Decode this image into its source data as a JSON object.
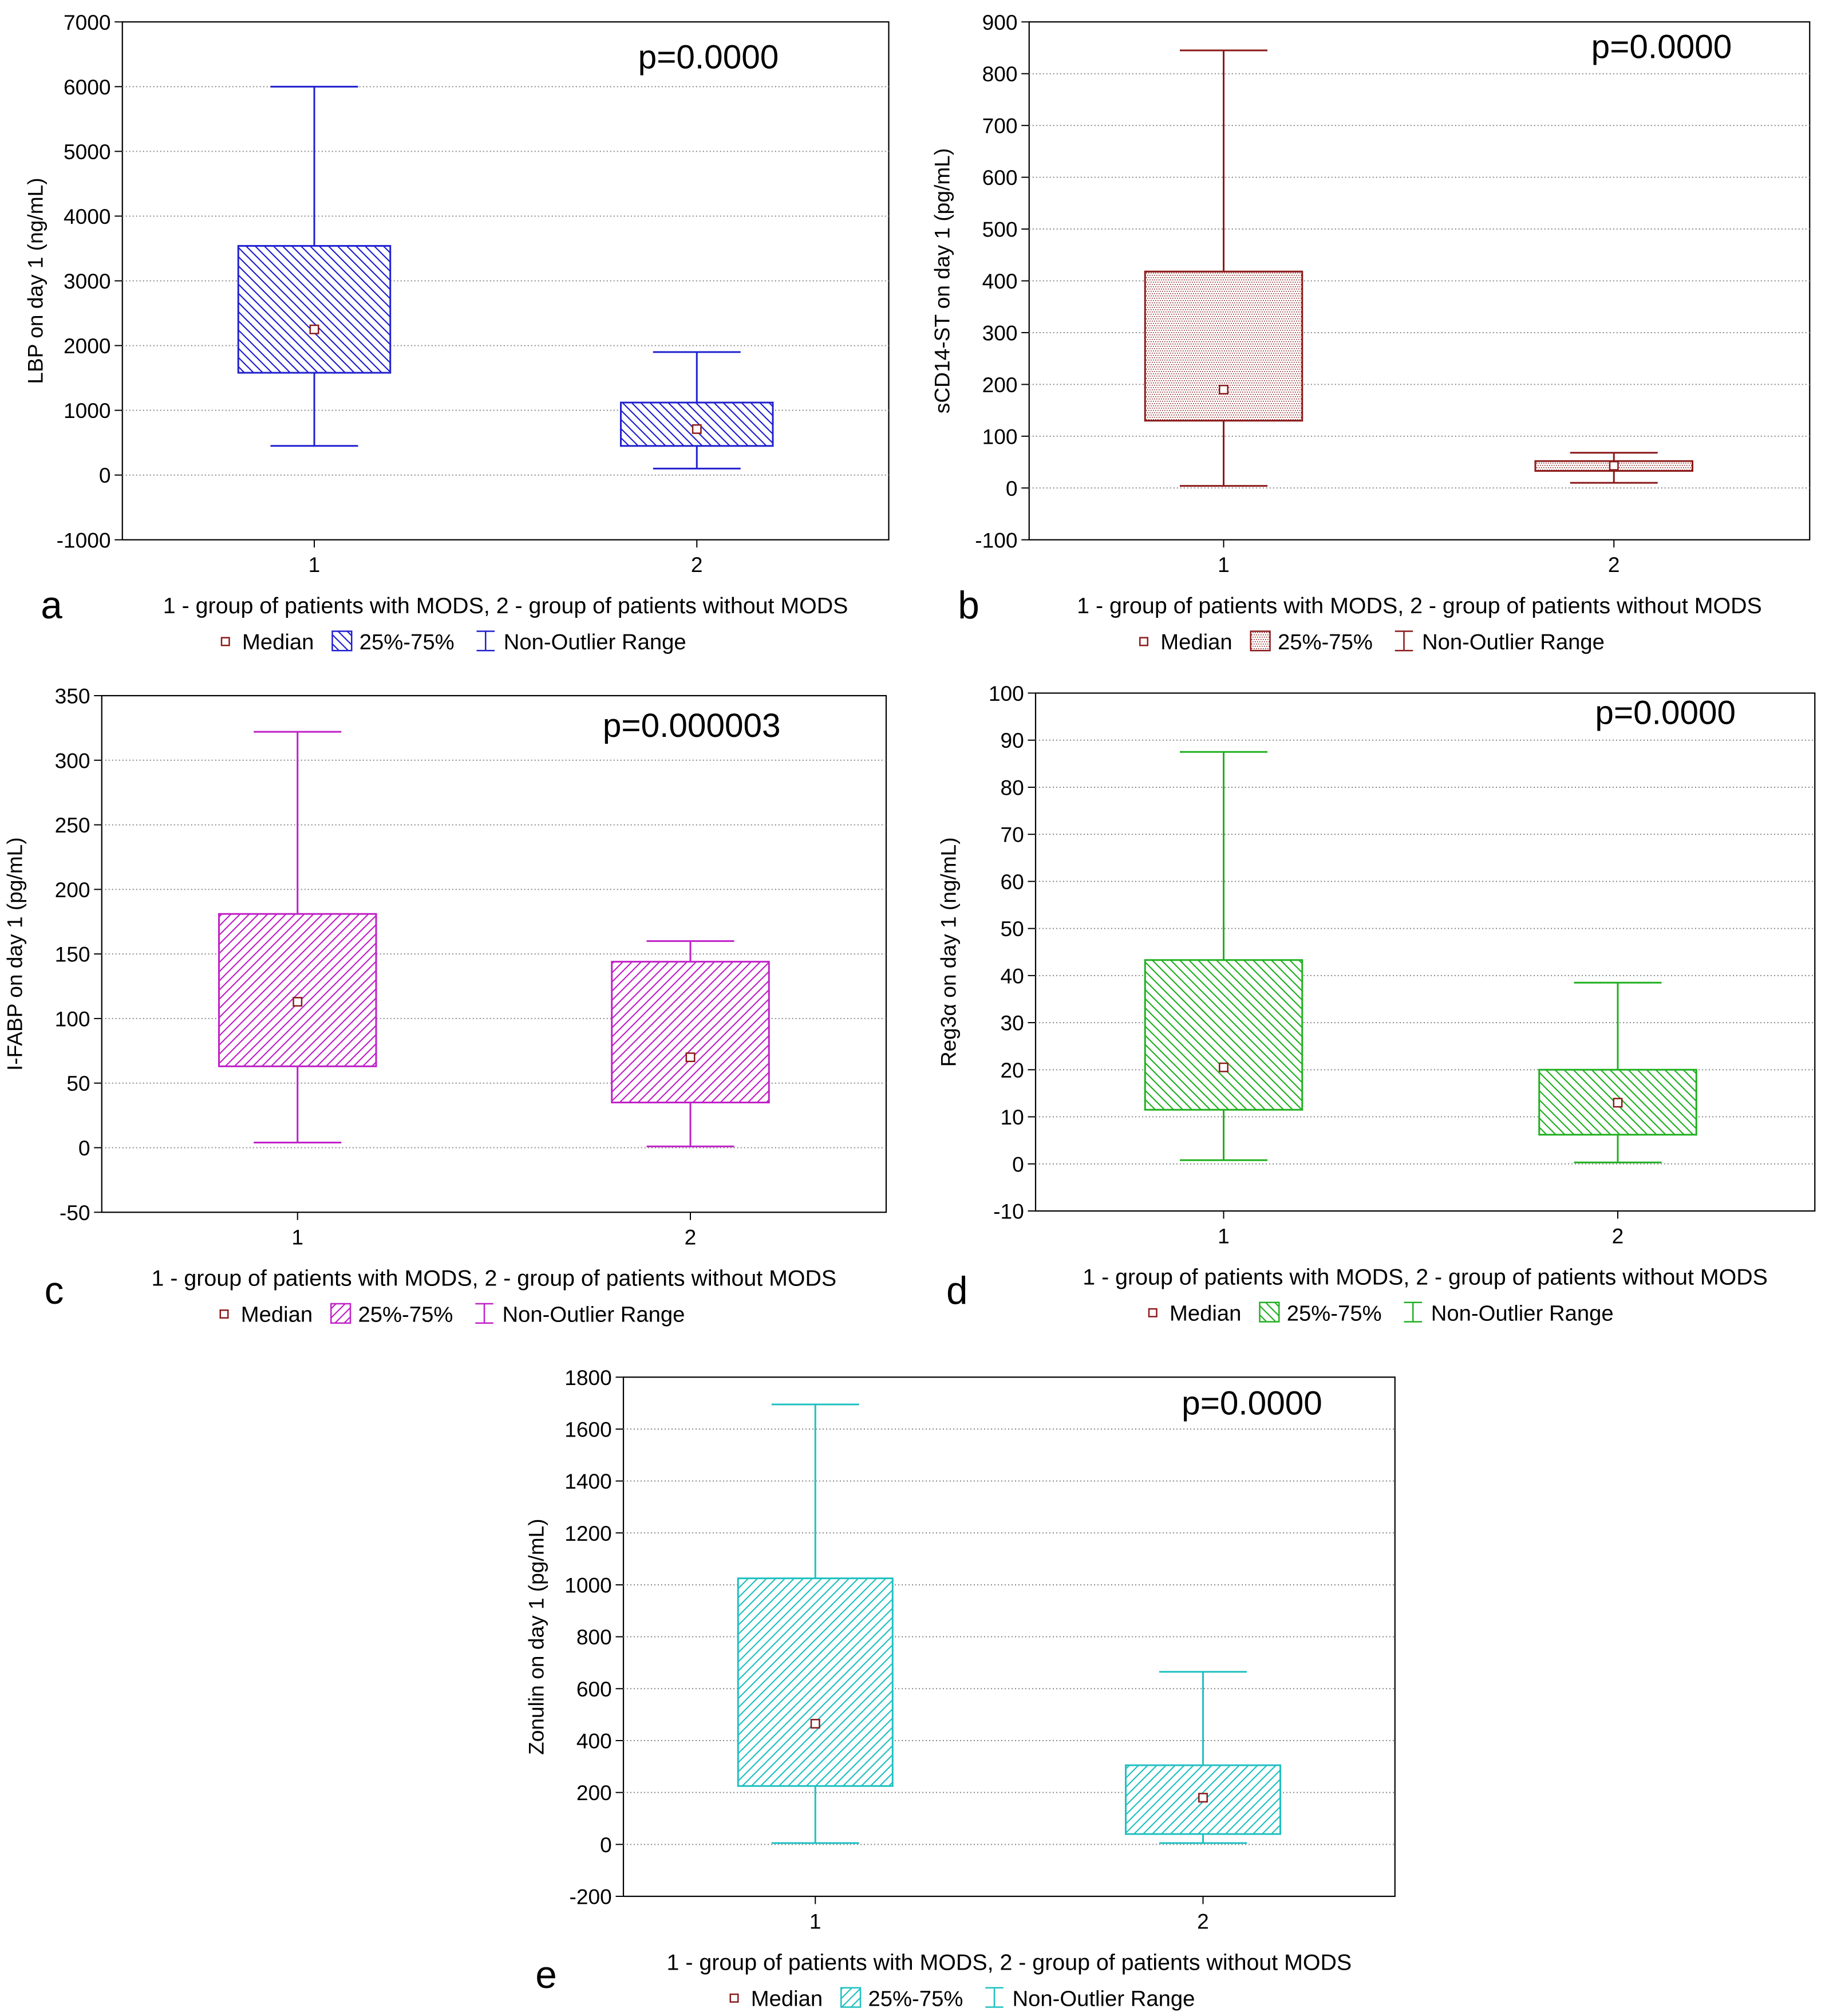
{
  "figure": {
    "legend_labels": {
      "median": "Median",
      "iqr": "25%-75%",
      "range": "Non-Outlier Range"
    }
  },
  "chart_data": [
    {
      "id": "a",
      "panel_label": "a",
      "type": "box",
      "title": "",
      "xlabel": "1 - group of patients with MODS, 2 - group of patients without MODS",
      "ylabel": "LBP on day 1 (ng/mL)",
      "annotation": "p=0.0000",
      "color": "#2020d0",
      "pattern": "diag-back",
      "categories": [
        "1",
        "2"
      ],
      "ylim": [
        -1000,
        7000
      ],
      "yticks": [
        -1000,
        0,
        1000,
        2000,
        3000,
        4000,
        5000,
        6000,
        7000
      ],
      "grid": true,
      "legend_position": "bottom",
      "series": [
        {
          "category": "1",
          "min": 450,
          "q1": 1580,
          "median": 2250,
          "q3": 3540,
          "max": 6000
        },
        {
          "category": "2",
          "min": 100,
          "q1": 450,
          "median": 710,
          "q3": 1120,
          "max": 1900
        }
      ]
    },
    {
      "id": "b",
      "panel_label": "b",
      "type": "box",
      "title": "",
      "xlabel": "1 - group of patients with MODS, 2 - group of patients without MODS",
      "ylabel": "sCD14-ST on day 1 (pg/mL)",
      "annotation": "p=0.0000",
      "color": "#8b1a1a",
      "pattern": "dots",
      "categories": [
        "1",
        "2"
      ],
      "ylim": [
        -100,
        900
      ],
      "yticks": [
        -100,
        0,
        100,
        200,
        300,
        400,
        500,
        600,
        700,
        800,
        900
      ],
      "grid": true,
      "legend_position": "bottom",
      "series": [
        {
          "category": "1",
          "min": 4,
          "q1": 130,
          "median": 190,
          "q3": 418,
          "max": 845
        },
        {
          "category": "2",
          "min": 10,
          "q1": 33,
          "median": 43,
          "q3": 52,
          "max": 68
        }
      ]
    },
    {
      "id": "c",
      "panel_label": "c",
      "type": "box",
      "title": "",
      "xlabel": "1 - group of patients with MODS, 2 - group of patients without MODS",
      "ylabel": "I-FABP on day 1 (pg/mL)",
      "annotation": "p=0.000003",
      "color": "#c020c8",
      "pattern": "diag-fwd",
      "categories": [
        "1",
        "2"
      ],
      "ylim": [
        -50,
        350
      ],
      "yticks": [
        -50,
        0,
        50,
        100,
        150,
        200,
        250,
        300,
        350
      ],
      "grid": true,
      "legend_position": "bottom",
      "series": [
        {
          "category": "1",
          "min": 4,
          "q1": 63,
          "median": 113,
          "q3": 181,
          "max": 322
        },
        {
          "category": "2",
          "min": 1,
          "q1": 35,
          "median": 70,
          "q3": 144,
          "max": 160
        }
      ]
    },
    {
      "id": "d",
      "panel_label": "d",
      "type": "box",
      "title": "",
      "xlabel": "1 - group of patients with MODS, 2 - group of patients without MODS",
      "ylabel": "Reg3α on day 1 (ng/mL)",
      "annotation": "p=0.0000",
      "color": "#20b020",
      "pattern": "diag-back",
      "categories": [
        "1",
        "2"
      ],
      "ylim": [
        -10,
        100
      ],
      "yticks": [
        -10,
        0,
        10,
        20,
        30,
        40,
        50,
        60,
        70,
        80,
        90,
        100
      ],
      "grid": true,
      "legend_position": "bottom",
      "series": [
        {
          "category": "1",
          "min": 0.8,
          "q1": 11.5,
          "median": 20.5,
          "q3": 43.3,
          "max": 87.5
        },
        {
          "category": "2",
          "min": 0.3,
          "q1": 6.2,
          "median": 13,
          "q3": 20,
          "max": 38.5
        }
      ]
    },
    {
      "id": "e",
      "panel_label": "e",
      "type": "box",
      "title": "",
      "xlabel": "1 - group of patients with MODS, 2 - group of patients without MODS",
      "ylabel": "Zonulin on day 1 (pg/mL)",
      "annotation": "p=0.0000",
      "color": "#20c0c0",
      "pattern": "diag-fwd",
      "categories": [
        "1",
        "2"
      ],
      "ylim": [
        -200,
        1800
      ],
      "yticks": [
        -200,
        0,
        200,
        400,
        600,
        800,
        1000,
        1200,
        1400,
        1600,
        1800
      ],
      "grid": true,
      "legend_position": "bottom",
      "series": [
        {
          "category": "1",
          "min": 5,
          "q1": 225,
          "median": 465,
          "q3": 1025,
          "max": 1695
        },
        {
          "category": "2",
          "min": 5,
          "q1": 40,
          "median": 180,
          "q3": 305,
          "max": 665
        }
      ]
    }
  ]
}
